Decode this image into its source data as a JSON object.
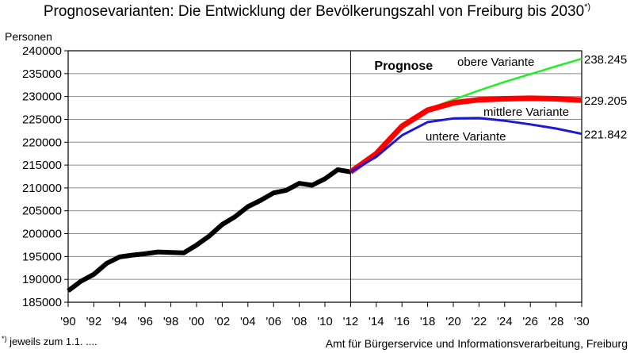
{
  "title": "Prognosevarianten: Die Entwicklung der Bevölkerungszahl von Freiburg bis 2030",
  "title_marker": "*)",
  "footnote_marker": "*)",
  "footnote": "jeweils zum 1.1. ....",
  "source": "Amt für Bürgerservice und Informationsverarbeitung, Freiburg",
  "chart_data": {
    "type": "line",
    "title": "Prognosevarianten: Die Entwicklung der Bevölkerungszahl von Freiburg bis 2030",
    "ylabel": "Personen",
    "xlabel": "",
    "ylim": [
      185000,
      240000
    ],
    "xlim": [
      1990,
      2030
    ],
    "y_ticks": [
      "185000",
      "190000",
      "195000",
      "200000",
      "205000",
      "210000",
      "215000",
      "220000",
      "225000",
      "230000",
      "235000",
      "240000"
    ],
    "x_ticks": [
      "'90",
      "'92",
      "'94",
      "'96",
      "'98",
      "'00",
      "'02",
      "'04",
      "'06",
      "'08",
      "'10",
      "'12",
      "'14",
      "'16",
      "'18",
      "'20",
      "'22",
      "'24",
      "'26",
      "'28",
      "'30"
    ],
    "grid": true,
    "prognose_label": "Prognose",
    "prognose_start": 2012,
    "series": [
      {
        "key": "history",
        "color": "#000000",
        "x": [
          1990,
          1991,
          1992,
          1993,
          1994,
          1995,
          1996,
          1997,
          1998,
          1999,
          2000,
          2001,
          2002,
          2003,
          2004,
          2005,
          2006,
          2007,
          2008,
          2009,
          2010,
          2011,
          2012
        ],
        "y": [
          187500,
          189600,
          191100,
          193500,
          194900,
          195300,
          195600,
          196000,
          195900,
          195800,
          197500,
          199500,
          202000,
          203700,
          205900,
          207300,
          208900,
          209500,
          211000,
          210600,
          212000,
          214000,
          213500
        ]
      },
      {
        "key": "upper",
        "name": "obere Variante",
        "color": "#22ee22",
        "end_label": "238.245",
        "x": [
          2012,
          2014,
          2016,
          2018,
          2020,
          2022,
          2024,
          2026,
          2028,
          2030
        ],
        "y": [
          213500,
          217500,
          223500,
          227200,
          229300,
          231300,
          233200,
          234900,
          236600,
          238245
        ]
      },
      {
        "key": "middle",
        "name": "mittlere Variante",
        "color": "#ff0000",
        "end_label": "229.205",
        "x": [
          2012,
          2014,
          2016,
          2018,
          2020,
          2022,
          2024,
          2026,
          2028,
          2030
        ],
        "y": [
          213500,
          217500,
          223500,
          227000,
          228600,
          229300,
          229500,
          229600,
          229500,
          229205
        ]
      },
      {
        "key": "lower",
        "name": "untere Variante",
        "color": "#1a1ad6",
        "end_label": "221.842",
        "x": [
          2012,
          2014,
          2016,
          2018,
          2020,
          2022,
          2024,
          2026,
          2028,
          2030
        ],
        "y": [
          213500,
          216800,
          221500,
          224400,
          225200,
          225300,
          224700,
          223900,
          223000,
          221842
        ]
      }
    ]
  }
}
